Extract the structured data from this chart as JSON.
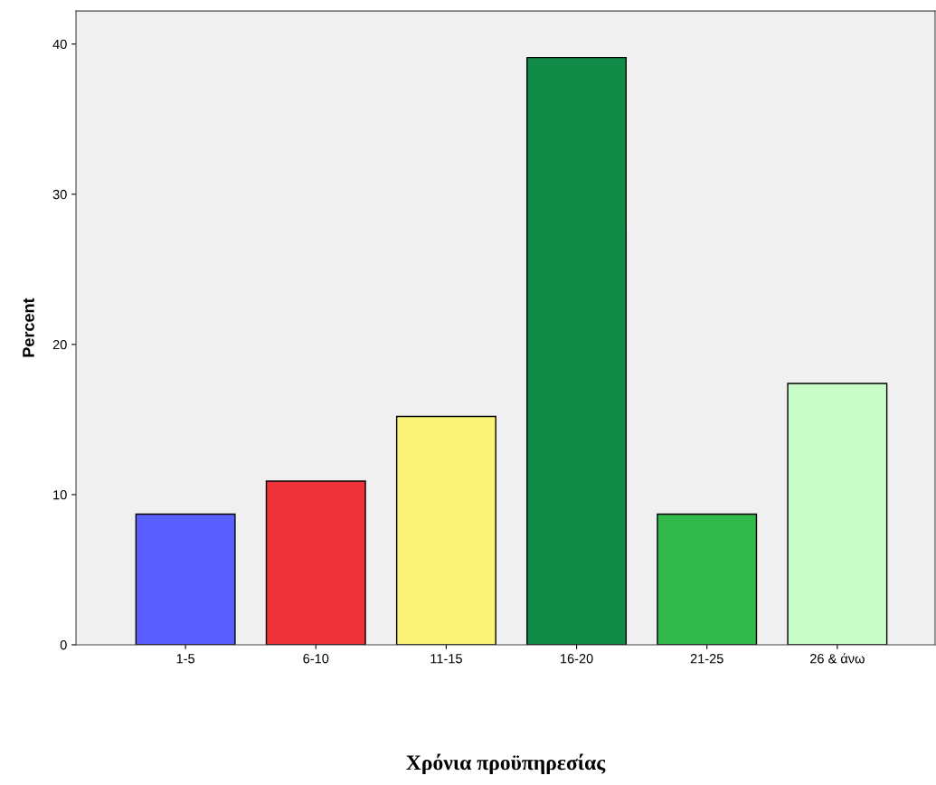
{
  "chart_data": {
    "type": "bar",
    "xlabel": "Χρόνια προϋπηρεσίας",
    "ylabel": "Percent",
    "categories": [
      "1-5",
      "6-10",
      "11-15",
      "16-20",
      "21-25",
      "26 & άνω"
    ],
    "values": [
      8.7,
      10.9,
      15.2,
      39.1,
      8.7,
      17.4
    ],
    "colors": [
      "#5a60ff",
      "#f0323a",
      "#fbf577",
      "#118c48",
      "#30b84a",
      "#c8fcc8"
    ],
    "ylim": [
      0,
      42.2
    ],
    "yticks": [
      0,
      10,
      20,
      30,
      40
    ],
    "grid": false
  }
}
